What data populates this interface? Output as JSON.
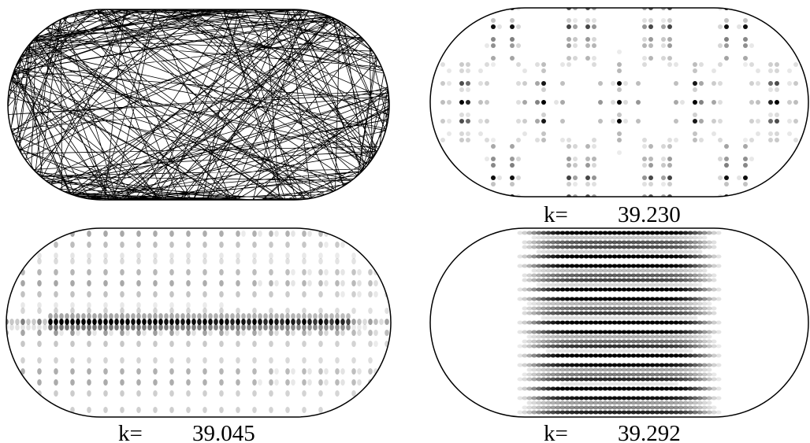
{
  "panels": [
    {
      "label": "k=",
      "value": "39.230"
    },
    {
      "label": "k=",
      "value": "39.045"
    },
    {
      "label": "k=",
      "value": "39.292"
    }
  ]
}
